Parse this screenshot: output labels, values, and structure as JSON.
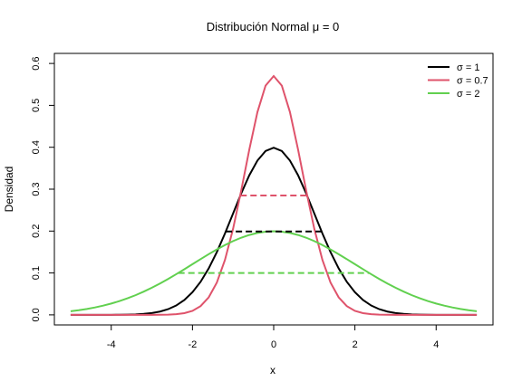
{
  "chart_data": {
    "type": "line",
    "title": "Distribución Normal μ = 0",
    "xlabel": "x",
    "ylabel": "Densidad",
    "xlim": [
      -5,
      5
    ],
    "ylim": [
      0,
      0.6
    ],
    "x_ticks": [
      -4,
      -2,
      0,
      2,
      4
    ],
    "y_ticks": [
      0.0,
      0.1,
      0.2,
      0.3,
      0.4,
      0.5,
      0.6
    ],
    "y_tick_labels": [
      "0.0",
      "0.1",
      "0.2",
      "0.3",
      "0.4",
      "0.5",
      "0.6"
    ],
    "x_tick_labels": [
      "-4",
      "-2",
      "0",
      "2",
      "4"
    ],
    "x_range": [
      -5,
      5
    ],
    "mean": 0,
    "grid": false,
    "legend_position": "top-right",
    "series": [
      {
        "name": "σ = 1",
        "sd": 1,
        "color": "#000000"
      },
      {
        "name": "σ = 0.7",
        "sd": 0.7,
        "color": "#DF536B"
      },
      {
        "name": "σ = 2",
        "sd": 2,
        "color": "#61D04F"
      }
    ],
    "fwhm_segments": [
      {
        "series": "σ = 1",
        "x_from": -1.18,
        "x_to": 1.18,
        "y": 0.199,
        "color": "#000000",
        "style": "dashed"
      },
      {
        "series": "σ = 0.7",
        "x_from": -0.82,
        "x_to": 0.82,
        "y": 0.285,
        "color": "#DF536B",
        "style": "dashed"
      },
      {
        "series": "σ = 2",
        "x_from": -2.35,
        "x_to": 2.35,
        "y": 0.1,
        "color": "#61D04F",
        "style": "dashed"
      }
    ]
  }
}
